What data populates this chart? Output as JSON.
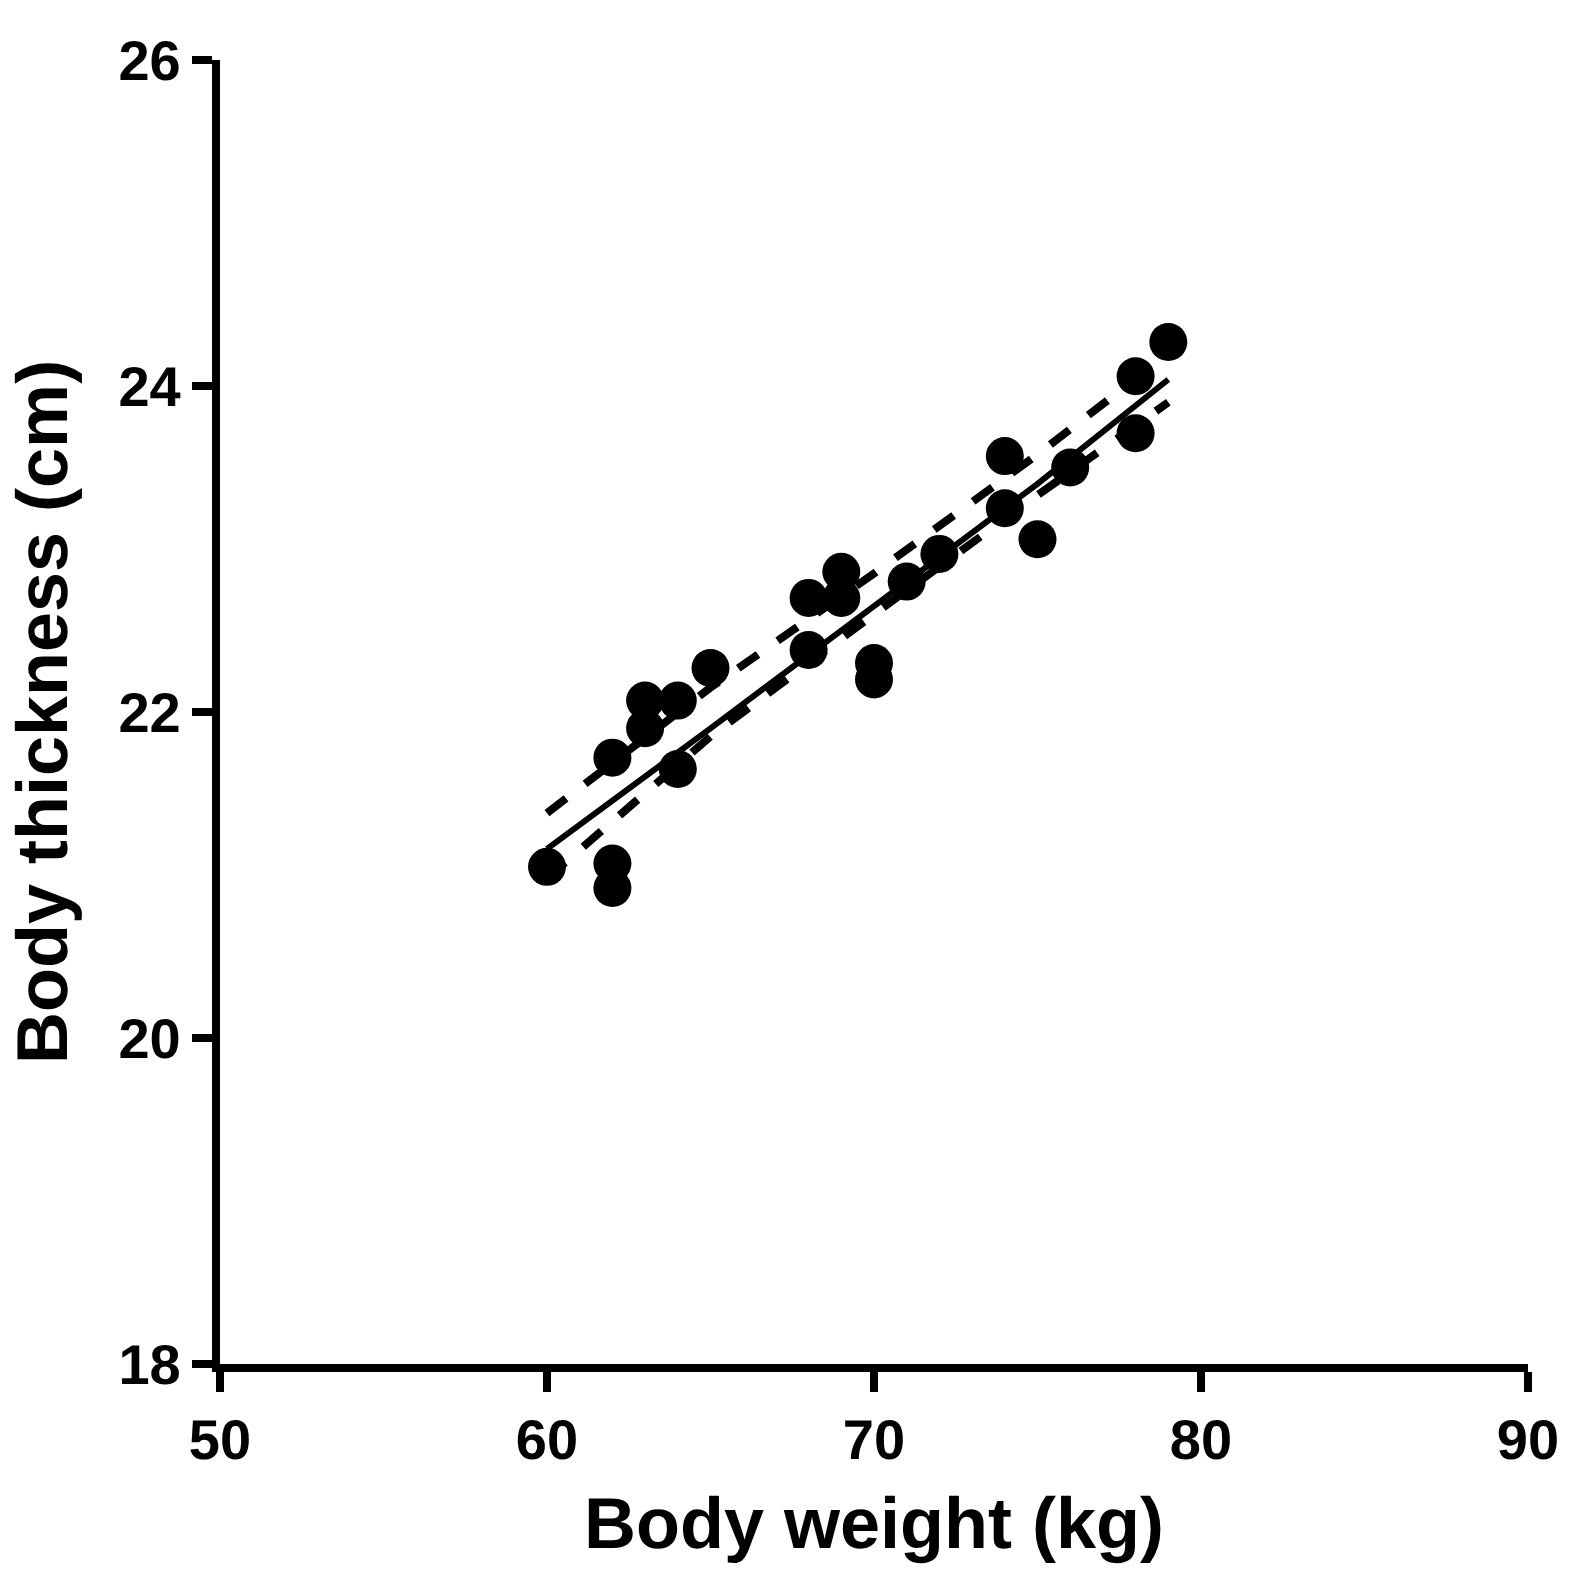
{
  "chart_data": {
    "type": "scatter",
    "xlabel": "Body weight (kg)",
    "ylabel": "Body thickness (cm)",
    "xlim": [
      50,
      90
    ],
    "xticks": [
      50,
      60,
      70,
      80,
      90
    ],
    "ylim": [
      18,
      26
    ],
    "yticks": [
      18,
      20,
      22,
      24,
      26
    ],
    "marker": "circle",
    "series": [
      {
        "color": "#000000",
        "x": [
          60,
          62,
          62,
          62,
          63,
          63,
          64,
          64,
          65,
          68,
          68,
          69,
          69,
          70,
          70,
          71,
          72,
          74,
          74,
          75,
          76,
          78,
          78,
          79
        ],
        "values": [
          21.05,
          21.07,
          20.92,
          21.72,
          22.07,
          21.9,
          22.07,
          21.65,
          22.27,
          22.7,
          22.38,
          22.86,
          22.7,
          22.3,
          22.2,
          22.8,
          22.97,
          23.57,
          23.25,
          23.06,
          23.5,
          24.06,
          23.71,
          24.27
        ]
      },
      {
        "type": "line",
        "color": "#000000",
        "line_style": "solid",
        "marker": "none",
        "x": [
          60,
          65,
          70,
          75,
          79
        ],
        "values": [
          21.16,
          21.9,
          22.65,
          23.4,
          24.04
        ]
      },
      {
        "type": "line",
        "color": "#000000",
        "line_style": "dashed",
        "marker": "none",
        "x": [
          60,
          65,
          70,
          75,
          79
        ],
        "values": [
          21.38,
          22.15,
          22.85,
          23.58,
          24.2
        ]
      },
      {
        "type": "line",
        "color": "#000000",
        "line_style": "dashed",
        "marker": "none",
        "x": [
          60,
          65,
          70,
          75,
          79
        ],
        "values": [
          20.98,
          21.85,
          22.6,
          23.33,
          23.9
        ]
      }
    ]
  }
}
